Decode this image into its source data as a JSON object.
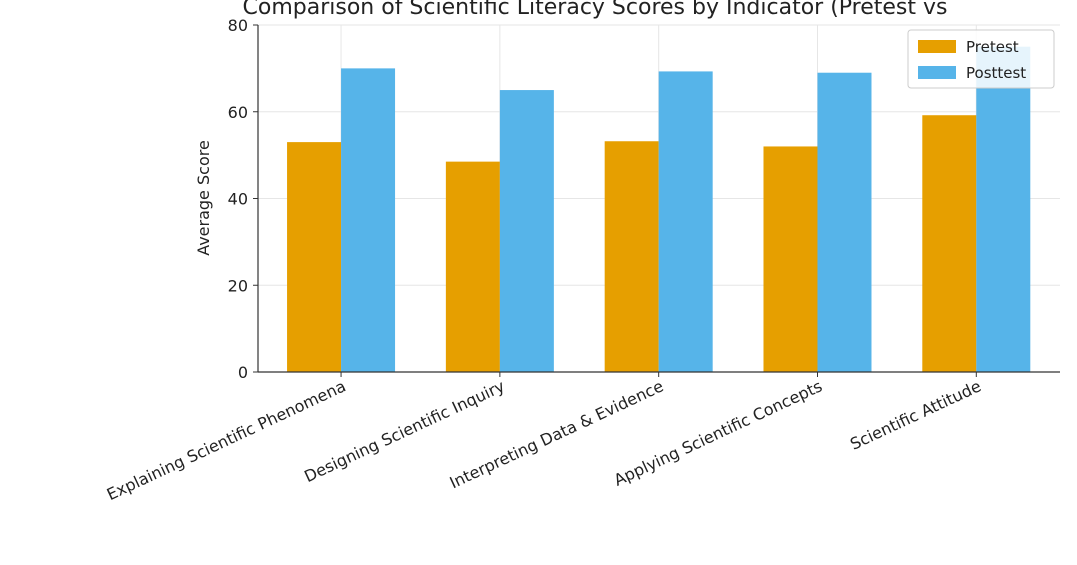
{
  "chart_data": {
    "type": "bar",
    "title": "Comparison of Scientific Literacy Scores by Indicator (Pretest vs",
    "xlabel": "",
    "ylabel": "Average Score",
    "ylim": [
      0,
      80
    ],
    "yticks": [
      0,
      20,
      40,
      60,
      80
    ],
    "grid": true,
    "legend_position": "top-right",
    "categories": [
      "Explaining Scientific Phenomena",
      "Designing Scientific Inquiry",
      "Interpreting Data & Evidence",
      "Applying Scientific Concepts",
      "Scientific Attitude"
    ],
    "series": [
      {
        "name": "Pretest",
        "color": "#E69F00",
        "values": [
          53,
          48.5,
          53.2,
          52,
          59.2
        ]
      },
      {
        "name": "Posttest",
        "color": "#56B4E9",
        "values": [
          70,
          65,
          69.3,
          69,
          75
        ]
      }
    ]
  }
}
